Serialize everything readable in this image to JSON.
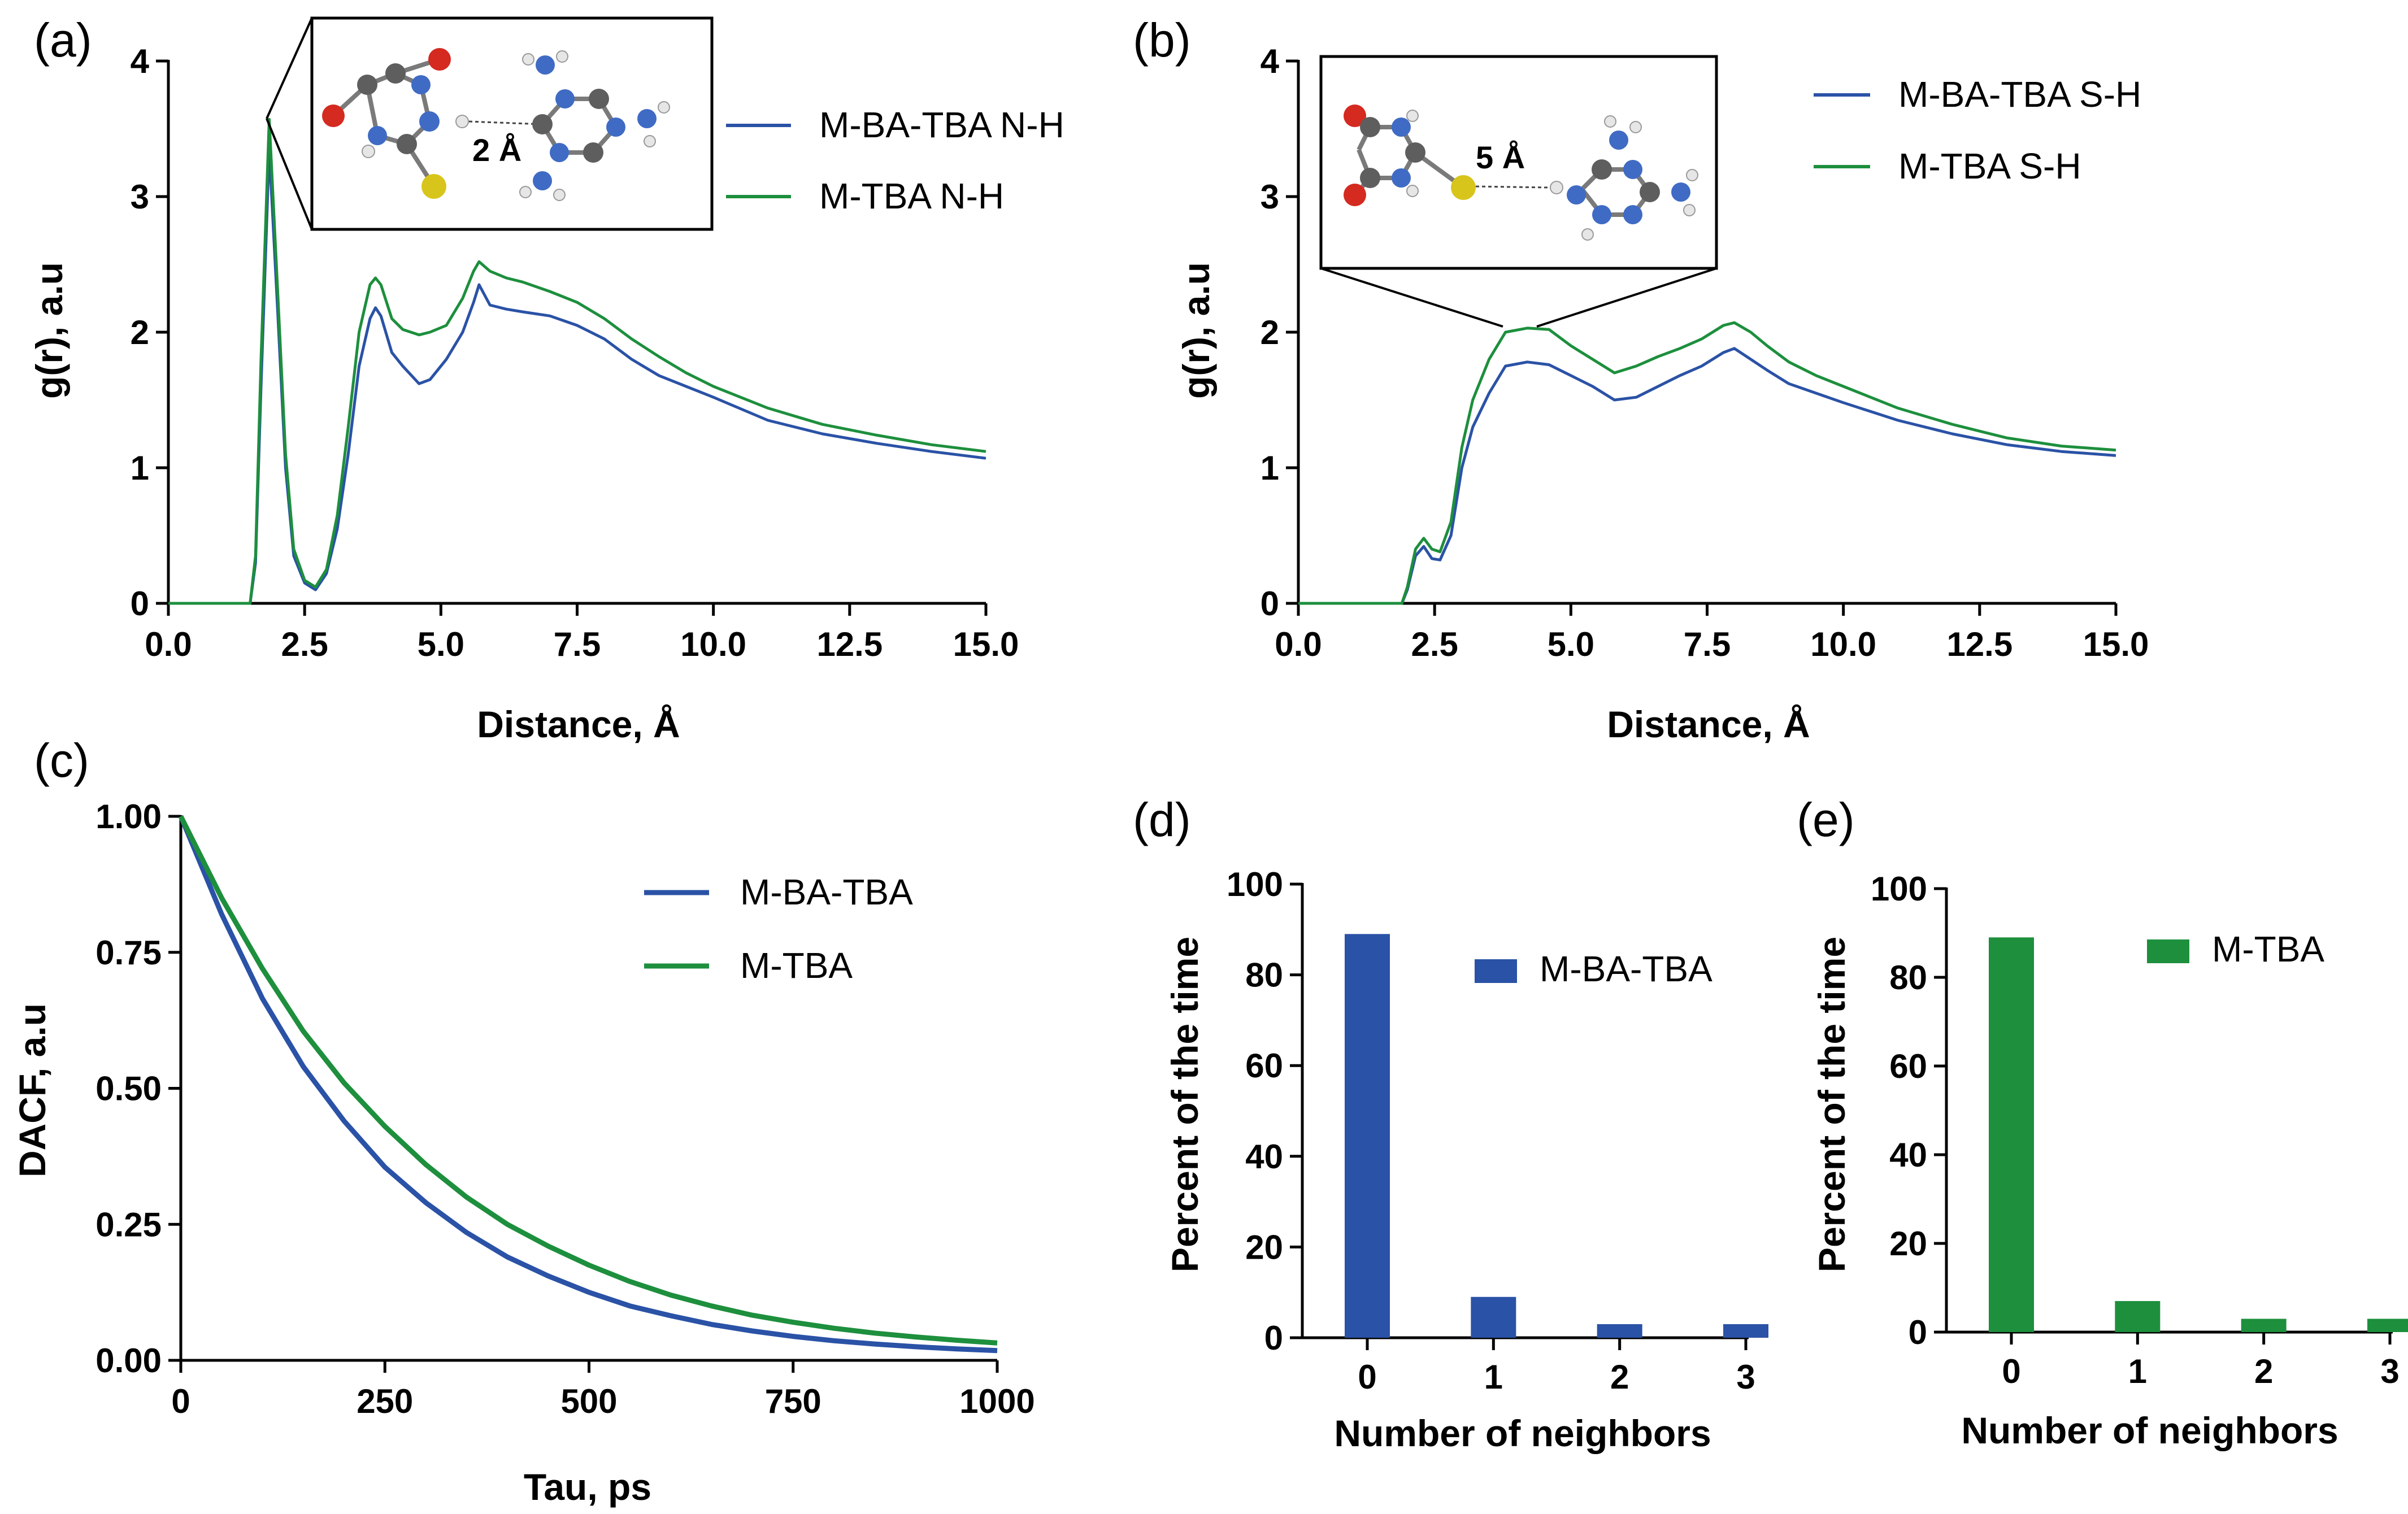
{
  "colors": {
    "blue": "#2a52a6",
    "green": "#1d8f3d",
    "axis": "#000000"
  },
  "chart_data": [
    {
      "id": "a",
      "type": "line",
      "panel_label": "(a)",
      "xlabel": "Distance, Å",
      "ylabel": "g(r), a.u",
      "xlim": [
        0,
        15
      ],
      "ylim": [
        0,
        4
      ],
      "xticks": [
        "0.0",
        "2.5",
        "5.0",
        "7.5",
        "10.0",
        "12.5",
        "15.0"
      ],
      "yticks": [
        "0",
        "1",
        "2",
        "3",
        "4"
      ],
      "inset_label": "2 Å",
      "series": [
        {
          "name": "M-BA-TBA N-H",
          "color": "#2a52a6",
          "x": [
            0,
            1.5,
            1.6,
            1.7,
            1.85,
            2.0,
            2.15,
            2.3,
            2.5,
            2.7,
            2.9,
            3.1,
            3.3,
            3.5,
            3.7,
            3.8,
            3.9,
            4.1,
            4.3,
            4.6,
            4.8,
            5.1,
            5.4,
            5.6,
            5.7,
            5.9,
            6.2,
            6.5,
            7.0,
            7.5,
            8.0,
            8.5,
            9.0,
            9.5,
            10.0,
            11.0,
            12.0,
            13.0,
            14.0,
            15.0
          ],
          "y": [
            0,
            0,
            0.3,
            1.6,
            3.35,
            2.2,
            1.0,
            0.35,
            0.15,
            0.1,
            0.22,
            0.55,
            1.1,
            1.75,
            2.1,
            2.18,
            2.12,
            1.85,
            1.75,
            1.62,
            1.65,
            1.8,
            2.0,
            2.22,
            2.35,
            2.2,
            2.17,
            2.15,
            2.12,
            2.05,
            1.95,
            1.8,
            1.68,
            1.6,
            1.52,
            1.35,
            1.25,
            1.18,
            1.12,
            1.07
          ]
        },
        {
          "name": "M-TBA N-H",
          "color": "#1d8f3d",
          "x": [
            0,
            1.5,
            1.6,
            1.7,
            1.85,
            2.0,
            2.15,
            2.3,
            2.5,
            2.7,
            2.9,
            3.1,
            3.3,
            3.5,
            3.7,
            3.8,
            3.9,
            4.1,
            4.3,
            4.6,
            4.8,
            5.1,
            5.4,
            5.6,
            5.7,
            5.9,
            6.2,
            6.5,
            7.0,
            7.5,
            8.0,
            8.5,
            9.0,
            9.5,
            10.0,
            11.0,
            12.0,
            13.0,
            14.0,
            15.0
          ],
          "y": [
            0,
            0,
            0.35,
            1.8,
            3.57,
            2.35,
            1.1,
            0.4,
            0.17,
            0.12,
            0.25,
            0.65,
            1.3,
            2.0,
            2.35,
            2.4,
            2.35,
            2.1,
            2.02,
            1.98,
            2.0,
            2.05,
            2.25,
            2.45,
            2.52,
            2.45,
            2.4,
            2.37,
            2.3,
            2.22,
            2.1,
            1.95,
            1.82,
            1.7,
            1.6,
            1.44,
            1.32,
            1.24,
            1.17,
            1.12
          ]
        }
      ]
    },
    {
      "id": "b",
      "type": "line",
      "panel_label": "(b)",
      "xlabel": "Distance, Å",
      "ylabel": "g(r), a.u",
      "xlim": [
        0,
        15
      ],
      "ylim": [
        0,
        4
      ],
      "xticks": [
        "0.0",
        "2.5",
        "5.0",
        "7.5",
        "10.0",
        "12.5",
        "15.0"
      ],
      "yticks": [
        "0",
        "1",
        "2",
        "3",
        "4"
      ],
      "inset_label": "5 Å",
      "series": [
        {
          "name": "M-BA-TBA S-H",
          "color": "#2a52a6",
          "x": [
            0,
            1.9,
            2.0,
            2.15,
            2.3,
            2.45,
            2.6,
            2.8,
            3.0,
            3.2,
            3.5,
            3.8,
            4.2,
            4.6,
            5.0,
            5.4,
            5.8,
            6.2,
            6.6,
            7.0,
            7.4,
            7.8,
            8.0,
            8.3,
            8.6,
            9.0,
            9.5,
            10.0,
            11.0,
            12.0,
            13.0,
            14.0,
            15.0
          ],
          "y": [
            0,
            0,
            0.1,
            0.35,
            0.42,
            0.33,
            0.32,
            0.5,
            1.0,
            1.3,
            1.55,
            1.75,
            1.78,
            1.76,
            1.68,
            1.6,
            1.5,
            1.52,
            1.6,
            1.68,
            1.75,
            1.85,
            1.88,
            1.8,
            1.72,
            1.62,
            1.55,
            1.48,
            1.35,
            1.25,
            1.17,
            1.12,
            1.09
          ]
        },
        {
          "name": "M-TBA S-H",
          "color": "#1d8f3d",
          "x": [
            0,
            1.9,
            2.0,
            2.15,
            2.3,
            2.45,
            2.6,
            2.8,
            3.0,
            3.2,
            3.5,
            3.8,
            4.2,
            4.6,
            5.0,
            5.4,
            5.8,
            6.2,
            6.6,
            7.0,
            7.4,
            7.8,
            8.0,
            8.3,
            8.6,
            9.0,
            9.5,
            10.0,
            11.0,
            12.0,
            13.0,
            14.0,
            15.0
          ],
          "y": [
            0,
            0,
            0.12,
            0.4,
            0.48,
            0.4,
            0.38,
            0.6,
            1.15,
            1.5,
            1.8,
            2.0,
            2.03,
            2.02,
            1.9,
            1.8,
            1.7,
            1.75,
            1.82,
            1.88,
            1.95,
            2.05,
            2.07,
            2.0,
            1.9,
            1.78,
            1.68,
            1.6,
            1.44,
            1.32,
            1.22,
            1.16,
            1.13
          ]
        }
      ]
    },
    {
      "id": "c",
      "type": "line",
      "panel_label": "(c)",
      "xlabel": "Tau, ps",
      "ylabel": "DACF, a.u",
      "xlim": [
        0,
        1000
      ],
      "ylim": [
        0,
        1
      ],
      "xticks": [
        "0",
        "250",
        "500",
        "750",
        "1000"
      ],
      "yticks": [
        "0.00",
        "0.25",
        "0.50",
        "0.75",
        "1.00"
      ],
      "series": [
        {
          "name": "M-BA-TBA",
          "color": "#2a52a6",
          "x": [
            0,
            50,
            100,
            150,
            200,
            250,
            300,
            350,
            400,
            450,
            500,
            550,
            600,
            650,
            700,
            750,
            800,
            850,
            900,
            950,
            1000
          ],
          "y": [
            1.0,
            0.82,
            0.665,
            0.54,
            0.44,
            0.355,
            0.29,
            0.235,
            0.19,
            0.155,
            0.125,
            0.1,
            0.082,
            0.066,
            0.054,
            0.044,
            0.036,
            0.03,
            0.025,
            0.021,
            0.018
          ]
        },
        {
          "name": "M-TBA",
          "color": "#1d8f3d",
          "x": [
            0,
            50,
            100,
            150,
            200,
            250,
            300,
            350,
            400,
            450,
            500,
            550,
            600,
            650,
            700,
            750,
            800,
            850,
            900,
            950,
            1000
          ],
          "y": [
            1.0,
            0.85,
            0.72,
            0.605,
            0.51,
            0.43,
            0.36,
            0.3,
            0.25,
            0.21,
            0.175,
            0.145,
            0.12,
            0.1,
            0.083,
            0.07,
            0.059,
            0.05,
            0.043,
            0.037,
            0.032
          ]
        }
      ]
    },
    {
      "id": "d",
      "type": "bar",
      "panel_label": "(d)",
      "xlabel": "Number of neighbors",
      "ylabel": "Percent of the time",
      "ylim": [
        0,
        100
      ],
      "yticks": [
        "0",
        "20",
        "40",
        "60",
        "80",
        "100"
      ],
      "categories": [
        "0",
        "1",
        "2",
        "3"
      ],
      "series": [
        {
          "name": "M-BA-TBA",
          "color": "#2a52a6",
          "values": [
            89,
            9,
            3,
            3
          ]
        }
      ]
    },
    {
      "id": "e",
      "type": "bar",
      "panel_label": "(e)",
      "xlabel": "Number of neighbors",
      "ylabel": "Percent of the time",
      "ylim": [
        0,
        100
      ],
      "yticks": [
        "0",
        "20",
        "40",
        "60",
        "80",
        "100"
      ],
      "categories": [
        "0",
        "1",
        "2",
        "3"
      ],
      "series": [
        {
          "name": "M-TBA",
          "color": "#1d8f3d",
          "values": [
            89,
            7,
            3,
            3
          ]
        }
      ]
    }
  ]
}
